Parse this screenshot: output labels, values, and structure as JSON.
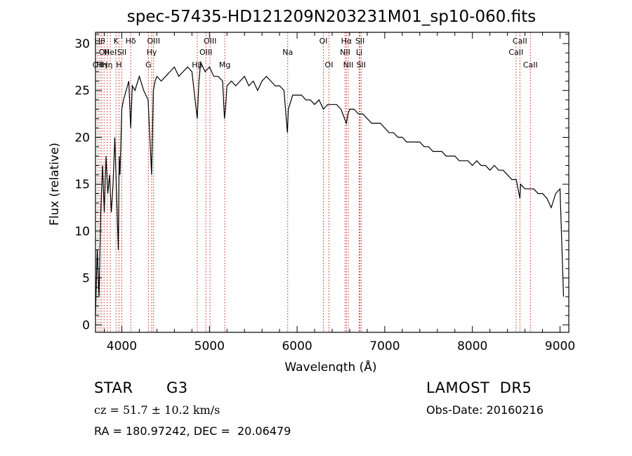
{
  "chart_data": {
    "type": "line",
    "title": "spec-57435-HD121209N203231M01_sp10-060.fits",
    "xlabel": "Wavelength (Å)",
    "ylabel": "Flux (relative)",
    "xlim": [
      3700,
      9100
    ],
    "ylim": [
      -0.8,
      31.2
    ],
    "x_ticks": [
      4000,
      5000,
      6000,
      7000,
      8000,
      9000
    ],
    "y_ticks": [
      0,
      5,
      10,
      15,
      20,
      25,
      30
    ],
    "grid": false,
    "legend": "none",
    "series": [
      {
        "color": "#000000",
        "x": [
          3700,
          3720,
          3740,
          3760,
          3780,
          3800,
          3820,
          3840,
          3860,
          3880,
          3900,
          3920,
          3940,
          3960,
          3970,
          3980,
          4000,
          4020,
          4050,
          4080,
          4101,
          4120,
          4150,
          4200,
          4250,
          4300,
          4320,
          4340,
          4360,
          4380,
          4400,
          4450,
          4500,
          4550,
          4600,
          4650,
          4700,
          4750,
          4800,
          4861,
          4880,
          4900,
          4950,
          5000,
          5050,
          5100,
          5150,
          5172,
          5183,
          5200,
          5250,
          5300,
          5350,
          5400,
          5450,
          5500,
          5550,
          5600,
          5650,
          5700,
          5750,
          5800,
          5850,
          5890,
          5900,
          5950,
          6000,
          6050,
          6100,
          6150,
          6200,
          6250,
          6300,
          6350,
          6400,
          6450,
          6500,
          6562,
          6580,
          6600,
          6650,
          6700,
          6750,
          6800,
          6850,
          6900,
          6950,
          7000,
          7050,
          7100,
          7150,
          7200,
          7250,
          7300,
          7350,
          7400,
          7450,
          7500,
          7550,
          7600,
          7650,
          7700,
          7750,
          7800,
          7850,
          7900,
          7950,
          8000,
          8050,
          8100,
          8150,
          8200,
          8250,
          8300,
          8350,
          8400,
          8450,
          8500,
          8542,
          8550,
          8600,
          8650,
          8700,
          8750,
          8800,
          8850,
          8900,
          8950,
          9000,
          9040
        ],
        "values": [
          1.0,
          8.0,
          3.0,
          12.0,
          17.0,
          12.0,
          18.0,
          14.0,
          16.0,
          12.0,
          15.0,
          20.0,
          14.0,
          8.0,
          18.0,
          16.0,
          23.0,
          24.0,
          25.0,
          26.0,
          21.0,
          25.5,
          25.0,
          26.5,
          25.0,
          24.0,
          20.0,
          16.0,
          25.0,
          26.0,
          26.5,
          26.0,
          26.5,
          27.0,
          27.5,
          26.5,
          27.0,
          27.5,
          27.0,
          22.0,
          26.0,
          28.0,
          27.0,
          27.5,
          26.5,
          26.5,
          26.0,
          22.0,
          23.0,
          25.5,
          26.0,
          25.5,
          26.0,
          26.5,
          25.5,
          26.0,
          25.0,
          26.0,
          26.5,
          26.0,
          25.5,
          25.5,
          25.0,
          20.5,
          23.0,
          24.5,
          24.5,
          24.5,
          24.0,
          24.0,
          23.5,
          24.0,
          23.0,
          23.5,
          23.5,
          23.5,
          23.0,
          21.5,
          22.5,
          23.0,
          23.0,
          22.5,
          22.5,
          22.0,
          21.5,
          21.5,
          21.5,
          21.0,
          20.5,
          20.5,
          20.0,
          20.0,
          19.5,
          19.5,
          19.5,
          19.5,
          19.0,
          19.0,
          18.5,
          18.5,
          18.5,
          18.0,
          18.0,
          18.0,
          17.5,
          17.5,
          17.5,
          17.0,
          17.5,
          17.0,
          17.0,
          16.5,
          17.0,
          16.5,
          16.5,
          16.0,
          15.5,
          15.5,
          13.5,
          15.0,
          14.5,
          14.5,
          14.5,
          14.0,
          14.0,
          13.5,
          12.5,
          14.0,
          14.5,
          3.0
        ]
      }
    ],
    "line_markers": [
      {
        "x": 3727,
        "label": "OII",
        "row": 3
      },
      {
        "x": 3750,
        "label": "Hθ",
        "row": 1
      },
      {
        "x": 3771,
        "label": "Hη",
        "row": 3
      },
      {
        "x": 3798,
        "label": "OII",
        "row": 2
      },
      {
        "x": 3835,
        "label": "Hη",
        "row": 3
      },
      {
        "x": 3869,
        "label": "HeI",
        "row": 2
      },
      {
        "x": 3934,
        "label": "K",
        "row": 1
      },
      {
        "x": 3968,
        "label": "H",
        "row": 3
      },
      {
        "x": 4000,
        "label": "SII",
        "row": 2
      },
      {
        "x": 4102,
        "label": "Hδ",
        "row": 1
      },
      {
        "x": 4304,
        "label": "G",
        "row": 3
      },
      {
        "x": 4341,
        "label": "Hγ",
        "row": 2
      },
      {
        "x": 4363,
        "label": "OIII",
        "row": 1
      },
      {
        "x": 4861,
        "label": "Hβ",
        "row": 3
      },
      {
        "x": 4959,
        "label": "OIII",
        "row": 2
      },
      {
        "x": 5007,
        "label": "OIII",
        "row": 1
      },
      {
        "x": 5175,
        "label": "Mg",
        "row": 3
      },
      {
        "x": 5893,
        "label": "Na",
        "row": 2
      },
      {
        "x": 6300,
        "label": "OI",
        "row": 1
      },
      {
        "x": 6364,
        "label": "OI",
        "row": 3
      },
      {
        "x": 6548,
        "label": "NII",
        "row": 2
      },
      {
        "x": 6563,
        "label": "Hα",
        "row": 1
      },
      {
        "x": 6584,
        "label": "NII",
        "row": 3
      },
      {
        "x": 6708,
        "label": "Li",
        "row": 2
      },
      {
        "x": 6717,
        "label": "SII",
        "row": 1
      },
      {
        "x": 6731,
        "label": "SII",
        "row": 3
      },
      {
        "x": 8498,
        "label": "CaII",
        "row": 2
      },
      {
        "x": 8542,
        "label": "CaII",
        "row": 1
      },
      {
        "x": 8662,
        "label": "CaII",
        "row": 3
      }
    ],
    "marker_color": "#c81e1e"
  },
  "info": {
    "object_class": "STAR",
    "subclass": "G3",
    "survey": "LAMOST  DR5",
    "cz": "cz = 51.7 ± 10.2 km/s",
    "obs_date": "Obs-Date: 20160216",
    "coords": "RA = 180.97242, DEC =  20.06479"
  }
}
